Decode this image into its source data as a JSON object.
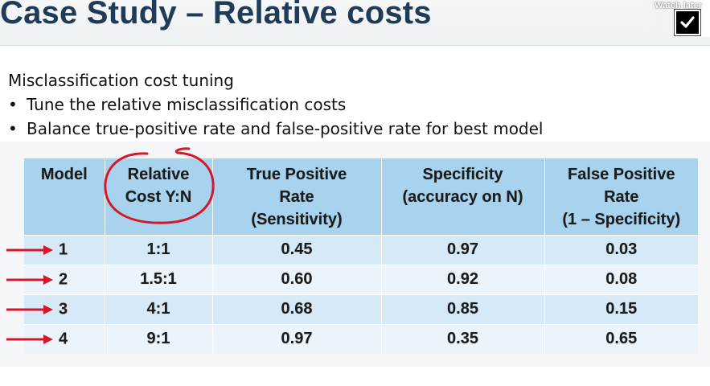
{
  "slide": {
    "title": "Case Study – Relative costs"
  },
  "overlay": {
    "watch_later_label": "Watch later",
    "watch_later_icon": "checkbox-check-icon"
  },
  "content": {
    "heading": "Misclassification cost tuning",
    "bullets": [
      "Tune the relative misclassification costs",
      "Balance true-positive rate and false-positive rate for best model"
    ]
  },
  "table": {
    "headers": [
      [
        "Model"
      ],
      [
        "Relative",
        "Cost Y:N"
      ],
      [
        "True Positive",
        "Rate",
        "(Sensitivity)"
      ],
      [
        "Specificity",
        "(accuracy on N)"
      ],
      [
        "False Positive",
        "Rate",
        "(1 – Specificity)"
      ]
    ],
    "rows": [
      {
        "model": "1",
        "cost": "1:1",
        "tpr": "0.45",
        "specificity": "0.97",
        "fpr": "0.03"
      },
      {
        "model": "2",
        "cost": "1.5:1",
        "tpr": "0.60",
        "specificity": "0.92",
        "fpr": "0.08"
      },
      {
        "model": "3",
        "cost": "4:1",
        "tpr": "0.68",
        "specificity": "0.85",
        "fpr": "0.15"
      },
      {
        "model": "4",
        "cost": "9:1",
        "tpr": "0.97",
        "specificity": "0.35",
        "fpr": "0.65"
      }
    ]
  },
  "colors": {
    "title": "#1f3b57",
    "header_fill": "#a7d3ee",
    "row_dark": "#d5e9f6",
    "row_light": "#ebf4fb",
    "annotation_red": "#d6172a"
  }
}
